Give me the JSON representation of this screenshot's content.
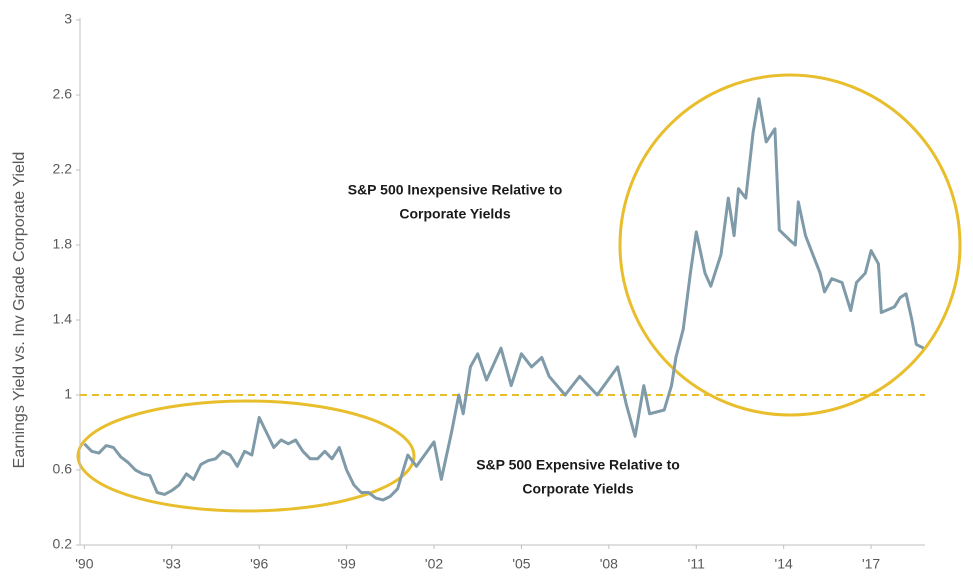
{
  "chart_data": {
    "type": "line",
    "y_label": "Earnings Yield  vs. Inv Grade Corporate Yield",
    "annotations": [
      {
        "lines": [
          "S&P 500 Inexpensive Relative to",
          "Corporate Yields"
        ]
      },
      {
        "lines": [
          "S&P 500 Expensive Relative to",
          "Corporate Yields"
        ]
      }
    ],
    "xlim": [
      1989.85,
      2018.85
    ],
    "xticks": [
      {
        "value": 1990,
        "label": "'90"
      },
      {
        "value": 1993,
        "label": "'93"
      },
      {
        "value": 1996,
        "label": "'96"
      },
      {
        "value": 1999,
        "label": "'99"
      },
      {
        "value": 2002,
        "label": "'02"
      },
      {
        "value": 2005,
        "label": "'05"
      },
      {
        "value": 2008,
        "label": "'08"
      },
      {
        "value": 2011,
        "label": "'11"
      },
      {
        "value": 2014,
        "label": "'14"
      },
      {
        "value": 2017,
        "label": "'17"
      }
    ],
    "ylim": [
      0.2,
      3
    ],
    "yticks": [
      0.2,
      0.6,
      1,
      1.4,
      1.8,
      2.2,
      2.6,
      3
    ],
    "grid": false,
    "reference_line": {
      "value": 1,
      "color": "#e8be2c"
    },
    "highlight_color": "#e8be2c",
    "x": [
      1990.0,
      1990.25,
      1990.5,
      1990.75,
      1991.0,
      1991.25,
      1991.5,
      1991.75,
      1992.0,
      1992.25,
      1992.5,
      1992.75,
      1993.0,
      1993.25,
      1993.5,
      1993.75,
      1994.0,
      1994.25,
      1994.5,
      1994.75,
      1995.0,
      1995.25,
      1995.5,
      1995.75,
      1996.0,
      1996.25,
      1996.5,
      1996.75,
      1997.0,
      1997.25,
      1997.5,
      1997.75,
      1998.0,
      1998.25,
      1998.5,
      1998.75,
      1999.0,
      1999.25,
      1999.5,
      1999.75,
      2000.0,
      2000.25,
      2000.5,
      2000.75,
      2001.1,
      2001.4,
      2002.0,
      2002.25,
      2002.6,
      2002.85,
      2003.0,
      2003.25,
      2003.5,
      2003.8,
      2004.3,
      2004.65,
      2005.0,
      2005.35,
      2005.7,
      2005.95,
      2006.5,
      2007.0,
      2007.6,
      2008.3,
      2008.6,
      2008.9,
      2009.2,
      2009.4,
      2009.9,
      2010.15,
      2010.3,
      2010.55,
      2010.8,
      2011.0,
      2011.3,
      2011.5,
      2011.85,
      2012.1,
      2012.3,
      2012.45,
      2012.7,
      2012.95,
      2013.15,
      2013.4,
      2013.7,
      2013.85,
      2014.25,
      2014.4,
      2014.5,
      2014.75,
      2015.0,
      2015.25,
      2015.4,
      2015.65,
      2016.0,
      2016.3,
      2016.5,
      2016.8,
      2017.0,
      2017.25,
      2017.35,
      2017.8,
      2018.0,
      2018.2,
      2018.4,
      2018.55,
      2018.8
    ],
    "series": [
      {
        "name": "Earnings Yield vs. Inv Grade Corporate Yield",
        "color": "#7f9aa8",
        "values": [
          0.74,
          0.7,
          0.69,
          0.73,
          0.72,
          0.67,
          0.64,
          0.6,
          0.58,
          0.57,
          0.48,
          0.47,
          0.49,
          0.52,
          0.58,
          0.55,
          0.63,
          0.65,
          0.66,
          0.7,
          0.68,
          0.62,
          0.7,
          0.68,
          0.88,
          0.8,
          0.72,
          0.76,
          0.74,
          0.76,
          0.7,
          0.66,
          0.66,
          0.7,
          0.66,
          0.72,
          0.6,
          0.52,
          0.48,
          0.48,
          0.45,
          0.44,
          0.46,
          0.5,
          0.68,
          0.62,
          0.75,
          0.55,
          0.8,
          1.0,
          0.9,
          1.15,
          1.22,
          1.08,
          1.25,
          1.05,
          1.22,
          1.15,
          1.2,
          1.1,
          1.0,
          1.1,
          1.0,
          1.15,
          0.95,
          0.78,
          1.05,
          0.9,
          0.92,
          1.05,
          1.2,
          1.35,
          1.65,
          1.87,
          1.65,
          1.58,
          1.75,
          2.05,
          1.85,
          2.1,
          2.05,
          2.4,
          2.58,
          2.35,
          2.42,
          1.88,
          1.82,
          1.8,
          2.03,
          1.85,
          1.75,
          1.65,
          1.55,
          1.62,
          1.6,
          1.45,
          1.6,
          1.65,
          1.77,
          1.7,
          1.44,
          1.47,
          1.52,
          1.54,
          1.4,
          1.27,
          1.25
        ]
      }
    ]
  }
}
